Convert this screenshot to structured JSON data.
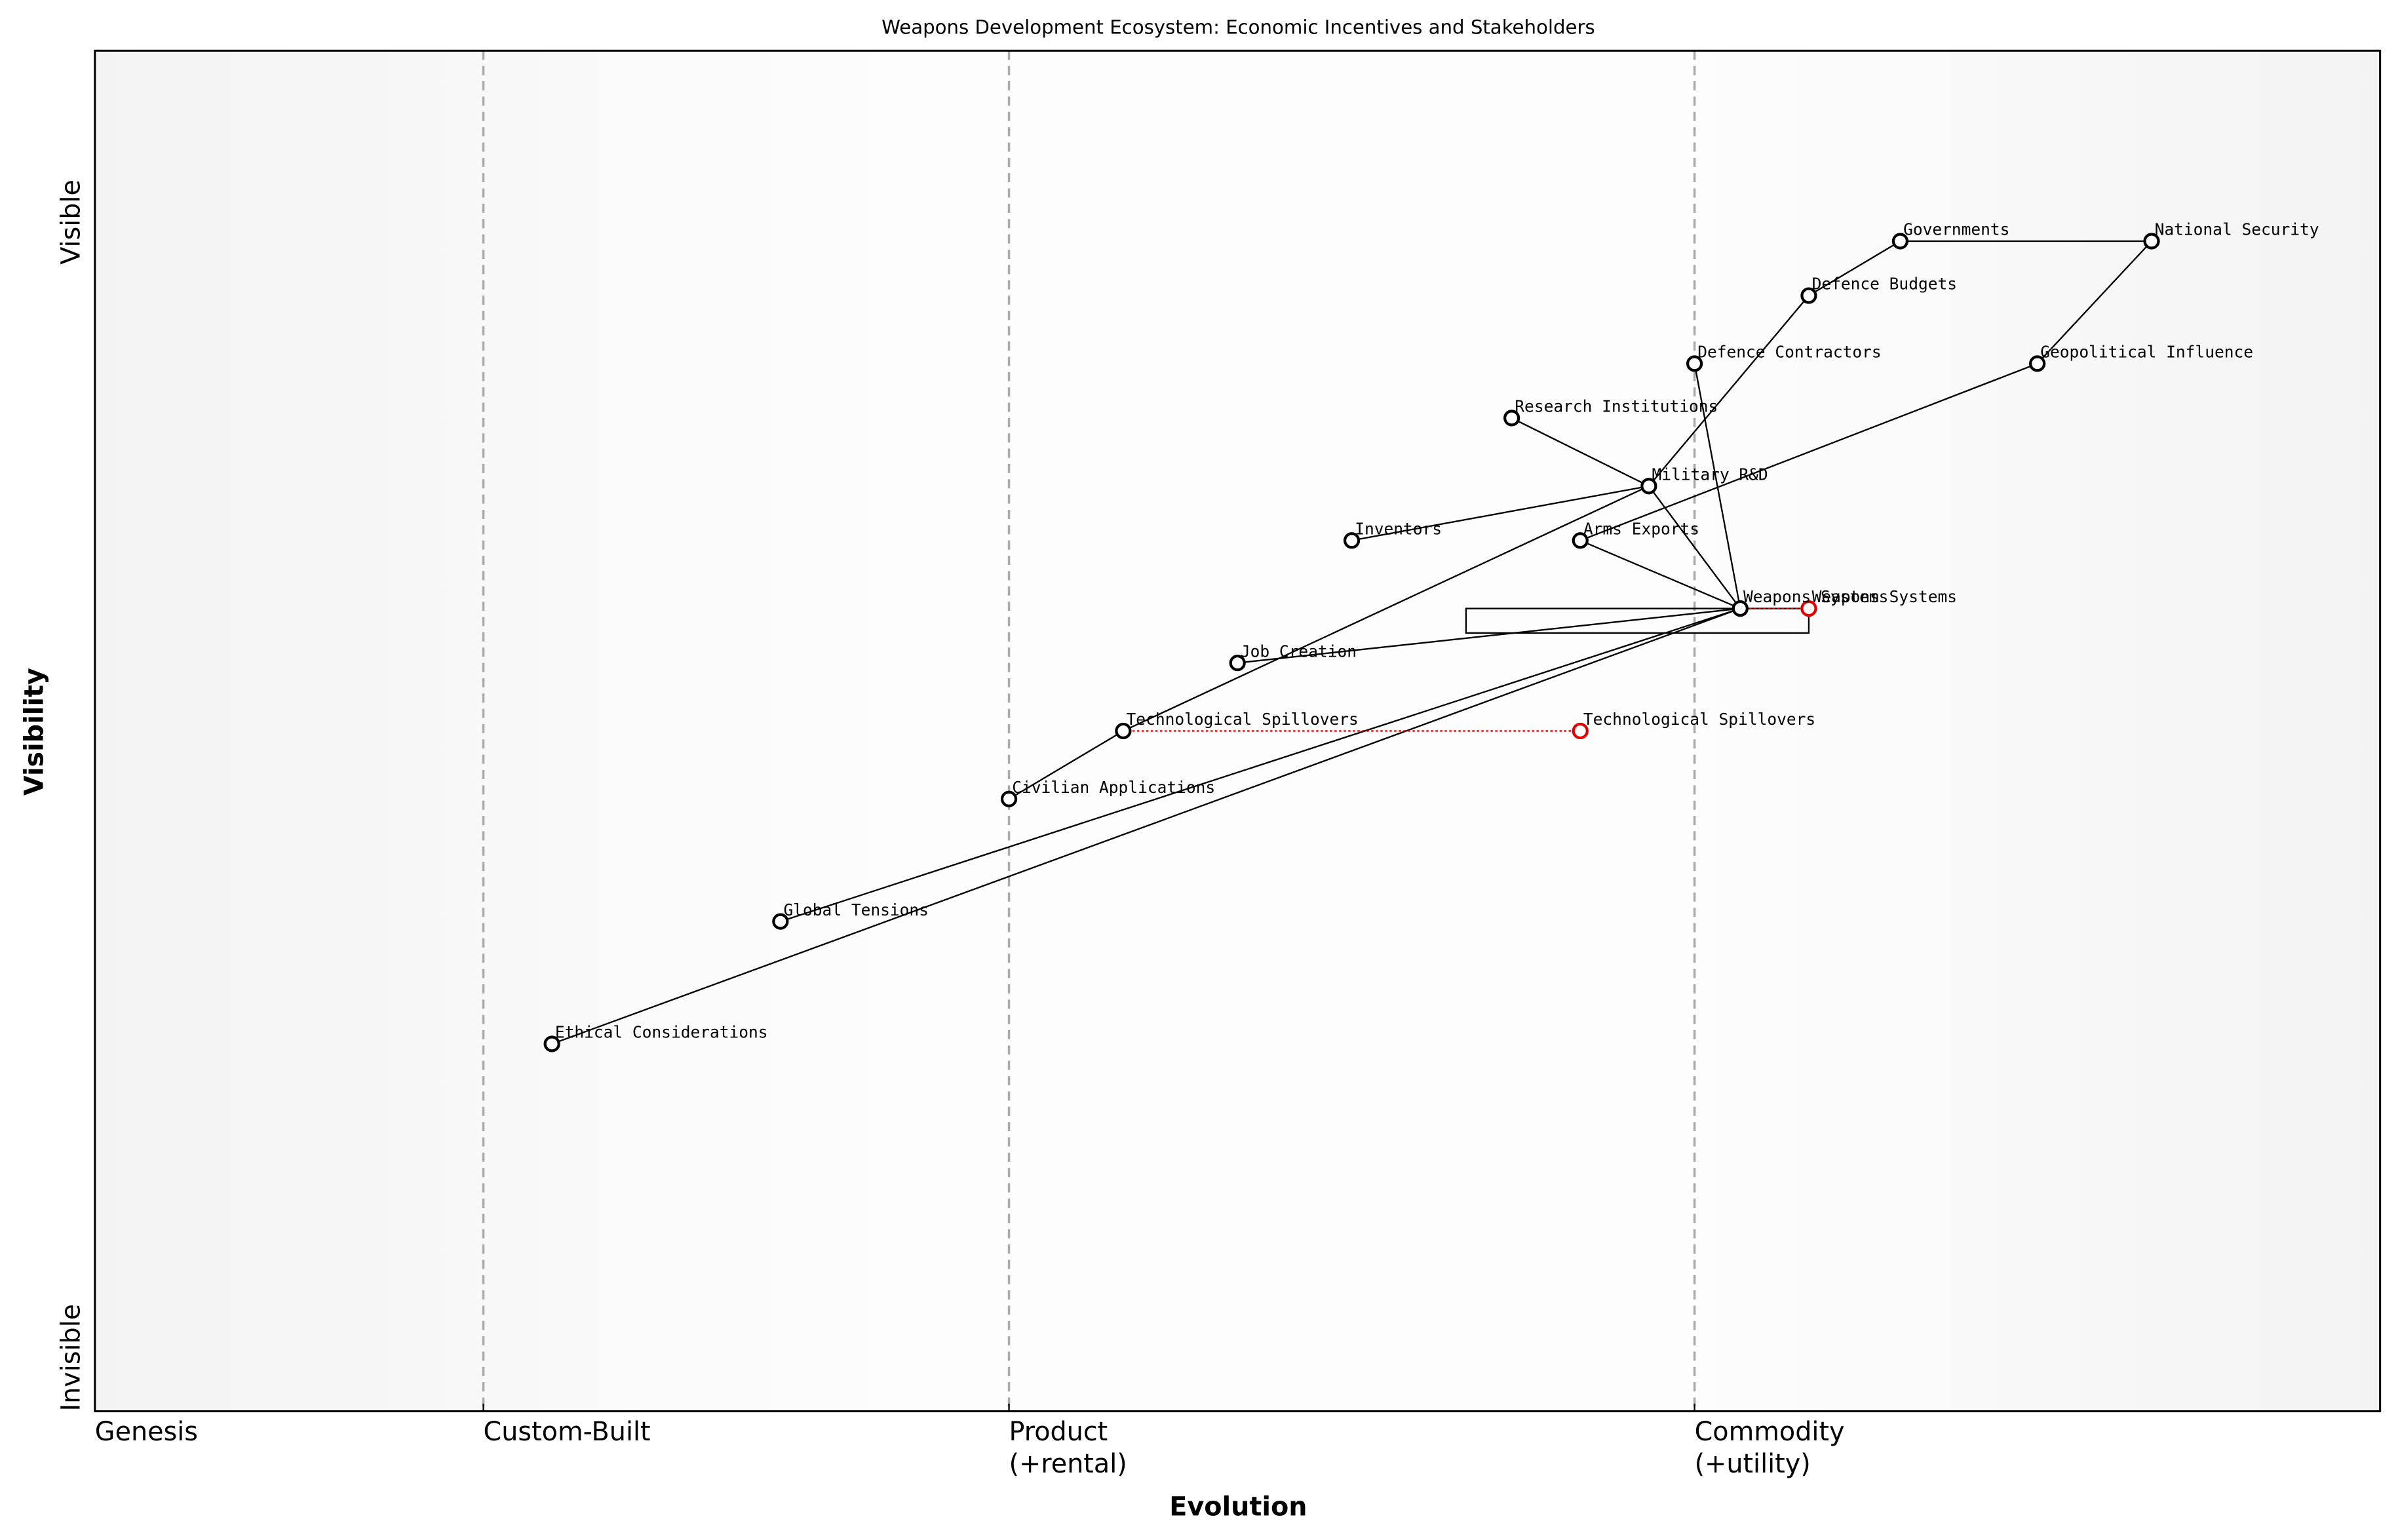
{
  "chart_data": {
    "type": "wardley",
    "title": "Weapons Development Ecosystem: Economic Incentives and Stakeholders",
    "x_label": "Evolution",
    "y_label": "Visibility",
    "visible_label": "Visible",
    "invisible_label": "Invisible",
    "xlim": [
      0,
      1
    ],
    "ylim": [
      0,
      1
    ],
    "xticks": [
      {
        "value": 0,
        "label": "Genesis"
      },
      {
        "value": 0.17,
        "label": "Custom-Built"
      },
      {
        "value": 0.4,
        "label": "Product\n(+rental)"
      },
      {
        "value": 0.7,
        "label": "Commodity\n(+utility)"
      }
    ],
    "node_color": "#000000",
    "evolve_color": "#e00000",
    "nodes": [
      {
        "name": "Governments",
        "x": 0.79,
        "y": 0.86
      },
      {
        "name": "National Security",
        "x": 0.9,
        "y": 0.86
      },
      {
        "name": "Defence Budgets",
        "x": 0.75,
        "y": 0.82
      },
      {
        "name": "Defence Contractors",
        "x": 0.7,
        "y": 0.77
      },
      {
        "name": "Geopolitical Influence",
        "x": 0.85,
        "y": 0.77
      },
      {
        "name": "Research Institutions",
        "x": 0.62,
        "y": 0.73
      },
      {
        "name": "Military R&D",
        "x": 0.68,
        "y": 0.68
      },
      {
        "name": "Inventors",
        "x": 0.55,
        "y": 0.64
      },
      {
        "name": "Arms Exports",
        "x": 0.65,
        "y": 0.64
      },
      {
        "name": "Weapons Systems",
        "x": 0.72,
        "y": 0.59
      },
      {
        "name": "Job Creation",
        "x": 0.5,
        "y": 0.55
      },
      {
        "name": "Technological Spillovers",
        "x": 0.45,
        "y": 0.5
      },
      {
        "name": "Civilian Applications",
        "x": 0.4,
        "y": 0.45
      },
      {
        "name": "Global Tensions",
        "x": 0.3,
        "y": 0.36
      },
      {
        "name": "Ethical Considerations",
        "x": 0.2,
        "y": 0.27
      }
    ],
    "links": [
      [
        "Governments",
        "National Security"
      ],
      [
        "Defence Budgets",
        "Governments"
      ],
      [
        "National Security",
        "Geopolitical Influence"
      ],
      [
        "Geopolitical Influence",
        "Arms Exports"
      ],
      [
        "Defence Budgets",
        "Military R&D"
      ],
      [
        "Research Institutions",
        "Military R&D"
      ],
      [
        "Inventors",
        "Military R&D"
      ],
      [
        "Technological Spillovers",
        "Military R&D"
      ],
      [
        "Civilian Applications",
        "Technological Spillovers"
      ],
      [
        "Military R&D",
        "Weapons Systems"
      ],
      [
        "Defence Contractors",
        "Weapons Systems"
      ],
      [
        "Arms Exports",
        "Weapons Systems"
      ],
      [
        "Job Creation",
        "Weapons Systems"
      ],
      [
        "Global Tensions",
        "Weapons Systems"
      ],
      [
        "Ethical Considerations",
        "Weapons Systems"
      ]
    ],
    "evolve": [
      {
        "component": "Weapons Systems",
        "to_x": 0.75
      },
      {
        "component": "Technological Spillovers",
        "to_x": 0.65
      }
    ],
    "pipeline": {
      "component": "Weapons Systems",
      "x_start": 0.6,
      "x_end": 0.75
    }
  }
}
